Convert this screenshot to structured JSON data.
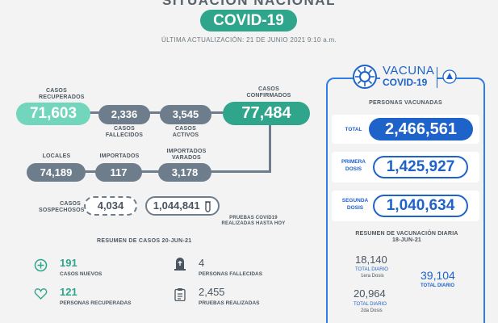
{
  "header": {
    "title": "SITUACIÓN NACIONAL",
    "badge": "COVID-19",
    "updated": "ÚLTIMA ACTUALIZACIÓN: 21 DE JUNIO 2021 9:10 a.m."
  },
  "cases": {
    "recuperados_label": "CASOS RECUPERADOS",
    "recuperados": "71,603",
    "fallecidos": "2,336",
    "fallecidos_label": "CASOS FALLECIDOS",
    "activos": "3,545",
    "activos_label": "CASOS ACTIVOS",
    "confirmados_label": "CASOS CONFIRMADOS",
    "confirmados": "77,484",
    "locales_label": "LOCALES",
    "locales": "74,189",
    "importados_label": "IMPORTADOS",
    "importados": "117",
    "varados_label": "IMPORTADOS VARADOS",
    "varados": "3,178",
    "sospechosos_label": "CASOS SOSPECHOSOS",
    "sospechosos": "4,034",
    "pruebas": "1,044,841",
    "pruebas_label": "PRUEBAS COVID19 REALIZADAS HASTA HOY"
  },
  "summary": {
    "title": "RESUMEN DE CASOS 20-JUN-21",
    "nuevos": "191",
    "nuevos_label": "CASOS NUEVOS",
    "fallecidas": "4",
    "fallecidas_label": "PERSONAS FALLECIDAS",
    "recuperadas": "121",
    "recuperadas_label": "PERSONAS RECUPERADAS",
    "pruebas": "2,455",
    "pruebas_label": "PRUEBAS REALIZADAS"
  },
  "vaccine": {
    "logo_top": "VACUNA",
    "logo_bottom": "COVID-19",
    "heading": "PERSONAS VACUNADAS",
    "total_label": "TOTAL",
    "total": "2,466,561",
    "primera_label": "PRIMERA DOSIS",
    "primera": "1,425,927",
    "segunda_label": "SEGUNDA DOSIS",
    "segunda": "1,040,634",
    "resumen_title": "RESUMEN DE VACUNACIÓN DIARIA 18-JUN-21",
    "d1": "18,140",
    "d1_label": "TOTAL DIARIO",
    "d1_sub": "1era Dosis",
    "d2": "20,964",
    "d2_label": "TOTAL DIARIO",
    "d2_sub": "2da Dosis",
    "daily_total": "39,104",
    "daily_total_label": "TOTAL DIARIO"
  },
  "colors": {
    "green": "#2fa58c",
    "lightgreen": "#71d6bb",
    "gray": "#6e7d8c",
    "blue": "#1e63c9"
  }
}
